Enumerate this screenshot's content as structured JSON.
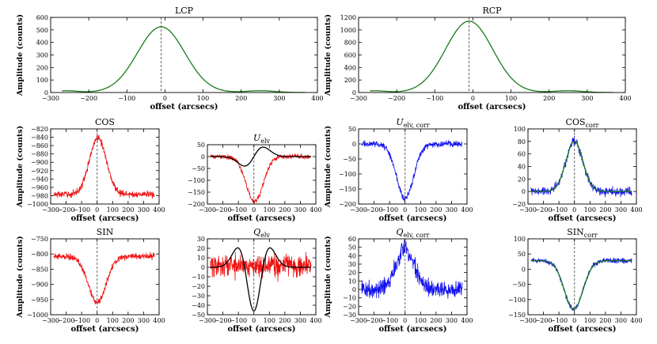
{
  "figure": {
    "common_xlabel": "offset (arcsecs)",
    "common_ylabel": "Amplitude (counts)"
  },
  "chart_data": [
    {
      "id": "lcp",
      "type": "line",
      "title": "LCP",
      "title_sub": "",
      "xlabel": "offset (arcsecs)",
      "ylabel": "Amplitude (counts)",
      "xlim": [
        -300,
        400
      ],
      "ylim": [
        0,
        600
      ],
      "xticks": [
        -300,
        -200,
        -100,
        0,
        100,
        200,
        300,
        400
      ],
      "yticks": [
        0,
        100,
        200,
        300,
        400,
        500,
        600
      ],
      "vline": -10,
      "series": [
        {
          "name": "LCP",
          "color": "#1a7a1a",
          "kind": "beam",
          "amp": 525,
          "center": -10,
          "sigma": 62,
          "offset": 0,
          "sidelobe": 14,
          "noise": 0,
          "x": [
            -270,
            370
          ]
        }
      ]
    },
    {
      "id": "rcp",
      "type": "line",
      "title": "RCP",
      "title_sub": "",
      "xlabel": "offset (arcsecs)",
      "ylabel": "Amplitude (counts)",
      "xlim": [
        -300,
        400
      ],
      "ylim": [
        0,
        1200
      ],
      "xticks": [
        -300,
        -200,
        -100,
        0,
        100,
        200,
        300,
        400
      ],
      "yticks": [
        0,
        200,
        400,
        600,
        800,
        1000,
        1200
      ],
      "vline": -10,
      "series": [
        {
          "name": "RCP",
          "color": "#1a7a1a",
          "kind": "beam",
          "amp": 1140,
          "center": -10,
          "sigma": 62,
          "offset": 0,
          "sidelobe": 28,
          "noise": 0,
          "x": [
            -270,
            370
          ]
        }
      ]
    },
    {
      "id": "cos",
      "type": "line",
      "title": "COS",
      "title_sub": "",
      "xlabel": "offset (arcsecs)",
      "ylabel": "Amplitude (counts)",
      "xlim": [
        -300,
        400
      ],
      "ylim": [
        -1000,
        -820
      ],
      "xticks": [
        -300,
        -200,
        -100,
        0,
        100,
        200,
        300,
        400
      ],
      "yticks": [
        -1000,
        -980,
        -960,
        -940,
        -920,
        -900,
        -880,
        -860,
        -840,
        -820
      ],
      "vline": 0,
      "series": [
        {
          "name": "COS",
          "color": "#ee1111",
          "kind": "gauss",
          "amp": 135,
          "center": 5,
          "sigma": 55,
          "offset": -977,
          "noise": 4,
          "x": [
            -280,
            370
          ]
        }
      ]
    },
    {
      "id": "uelv",
      "type": "line",
      "title": "U",
      "title_sub": "elv",
      "xlabel": "offset (arcsecs)",
      "ylabel": "",
      "xlim": [
        -300,
        400
      ],
      "ylim": [
        -200,
        50
      ],
      "xticks": [
        -300,
        -200,
        -100,
        0,
        100,
        200,
        300,
        400
      ],
      "yticks": [
        -200,
        -150,
        -100,
        -50,
        0,
        50
      ],
      "vline": 0,
      "series": [
        {
          "name": "U_elv data",
          "color": "#ee1111",
          "kind": "gauss",
          "amp": -190,
          "center": 5,
          "sigma": 55,
          "offset": 0,
          "noise": 5,
          "x": [
            -280,
            370
          ]
        },
        {
          "name": "U_elv model",
          "color": "#000000",
          "kind": "deriv",
          "amp": -40,
          "center": 0,
          "sigma": 60,
          "offset": 0,
          "noise": 0,
          "x": [
            -280,
            370
          ]
        }
      ]
    },
    {
      "id": "uelvcorr",
      "type": "line",
      "title": "U",
      "title_sub": "elv, corr",
      "xlabel": "offset (arcsecs)",
      "ylabel": "Amplitude (counts)",
      "xlim": [
        -300,
        400
      ],
      "ylim": [
        -200,
        50
      ],
      "xticks": [
        -300,
        -200,
        -100,
        0,
        100,
        200,
        300,
        400
      ],
      "yticks": [
        -200,
        -150,
        -100,
        -50,
        0,
        50
      ],
      "vline": 0,
      "series": [
        {
          "name": "U_elv,corr",
          "color": "#1111ee",
          "kind": "gauss",
          "amp": -180,
          "center": 0,
          "sigma": 55,
          "offset": 0,
          "noise": 5,
          "x": [
            -280,
            370
          ]
        }
      ]
    },
    {
      "id": "coscorr",
      "type": "line",
      "title": "COS",
      "title_sub": "corr",
      "xlabel": "offset (arcsecs)",
      "ylabel": "",
      "xlim": [
        -300,
        400
      ],
      "ylim": [
        -20,
        100
      ],
      "xticks": [
        -300,
        -200,
        -100,
        0,
        100,
        200,
        300,
        400
      ],
      "yticks": [
        -20,
        0,
        20,
        40,
        60,
        80,
        100
      ],
      "vline": 0,
      "series": [
        {
          "name": "COS_corr data",
          "color": "#1111ee",
          "kind": "gauss",
          "amp": 80,
          "center": 0,
          "sigma": 55,
          "offset": 0,
          "noise": 3.5,
          "x": [
            -280,
            370
          ]
        },
        {
          "name": "COS_corr model",
          "color": "#1a7a1a",
          "kind": "gauss",
          "amp": 80,
          "center": 0,
          "sigma": 55,
          "offset": 0,
          "noise": 0,
          "x": [
            -280,
            370
          ]
        }
      ]
    },
    {
      "id": "sin",
      "type": "line",
      "title": "SIN",
      "title_sub": "",
      "xlabel": "offset (arcsecs)",
      "ylabel": "Amplitude (counts)",
      "xlim": [
        -300,
        400
      ],
      "ylim": [
        -1000,
        -750
      ],
      "xticks": [
        -300,
        -200,
        -100,
        0,
        100,
        200,
        300,
        400
      ],
      "yticks": [
        -1000,
        -950,
        -900,
        -850,
        -800,
        -750
      ],
      "vline": 0,
      "series": [
        {
          "name": "SIN",
          "color": "#ee1111",
          "kind": "gauss",
          "amp": -150,
          "center": 0,
          "sigma": 58,
          "offset": -808,
          "noise": 5,
          "x": [
            -280,
            370
          ]
        }
      ]
    },
    {
      "id": "qelv",
      "type": "line",
      "title": "Q",
      "title_sub": "elv",
      "xlabel": "offset (arcsecs)",
      "ylabel": "",
      "xlim": [
        -300,
        400
      ],
      "ylim": [
        -50,
        30
      ],
      "xticks": [
        -300,
        -200,
        -100,
        0,
        100,
        200,
        300,
        400
      ],
      "yticks": [
        -50,
        -40,
        -30,
        -20,
        -10,
        0,
        10,
        20,
        30
      ],
      "vline": 0,
      "series": [
        {
          "name": "Q_elv data",
          "color": "#ee1111",
          "kind": "flat",
          "amp": 0,
          "center": 0,
          "sigma": 50,
          "offset": 2,
          "noise": 6,
          "x": [
            -280,
            370
          ]
        },
        {
          "name": "Q_elv model",
          "color": "#000000",
          "kind": "mexhat",
          "amp": -46,
          "center": 0,
          "sigma": 60,
          "offset": 0,
          "noise": 0,
          "x": [
            -280,
            370
          ]
        }
      ]
    },
    {
      "id": "qelvcorr",
      "type": "line",
      "title": "Q",
      "title_sub": "elv, corr",
      "xlabel": "offset (arcsecs)",
      "ylabel": "Amplitude (counts)",
      "xlim": [
        -300,
        400
      ],
      "ylim": [
        -30,
        60
      ],
      "xticks": [
        -300,
        -200,
        -100,
        0,
        100,
        200,
        300,
        400
      ],
      "yticks": [
        -30,
        -20,
        -10,
        0,
        10,
        20,
        30,
        40,
        50,
        60
      ],
      "vline": 0,
      "series": [
        {
          "name": "Q_elv,corr",
          "color": "#1111ee",
          "kind": "gauss",
          "amp": 48,
          "center": 0,
          "sigma": 58,
          "offset": 0,
          "noise": 5,
          "x": [
            -280,
            370
          ]
        }
      ]
    },
    {
      "id": "sincorr",
      "type": "line",
      "title": "SIN",
      "title_sub": "corr",
      "xlabel": "offset (arcsecs)",
      "ylabel": "",
      "xlim": [
        -300,
        400
      ],
      "ylim": [
        -150,
        100
      ],
      "xticks": [
        -300,
        -200,
        -100,
        0,
        100,
        200,
        300,
        400
      ],
      "yticks": [
        -150,
        -100,
        -50,
        0,
        50,
        100
      ],
      "vline": 0,
      "series": [
        {
          "name": "SIN_corr data",
          "color": "#1111ee",
          "kind": "gauss",
          "amp": -160,
          "center": -5,
          "sigma": 60,
          "offset": 28,
          "noise": 4,
          "x": [
            -280,
            370
          ]
        },
        {
          "name": "SIN_corr model",
          "color": "#1a7a1a",
          "kind": "gauss",
          "amp": -160,
          "center": -5,
          "sigma": 60,
          "offset": 28,
          "noise": 0,
          "x": [
            -280,
            370
          ]
        }
      ]
    }
  ]
}
